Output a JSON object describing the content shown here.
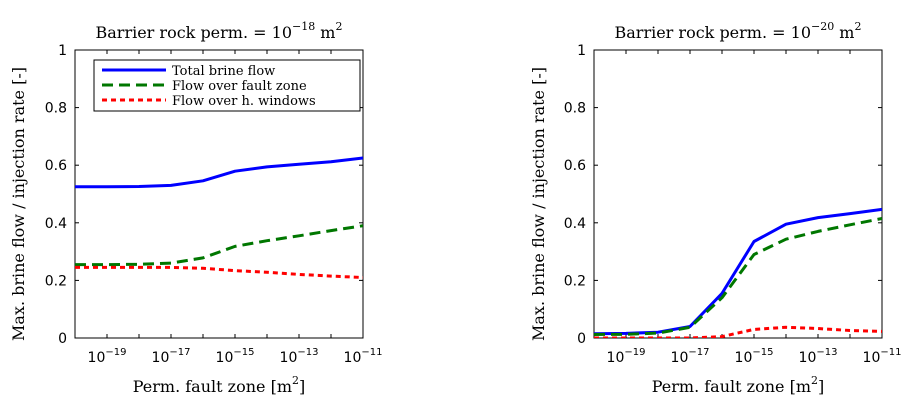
{
  "chart_data": [
    {
      "type": "line",
      "title_main": "Barrier rock perm. = 10",
      "title_exp": "−18",
      "title_unit": " m",
      "title_unit_exp": "2",
      "xlabel_main": "Perm. fault zone [m",
      "xlabel_exp": "2",
      "xlabel_end": "]",
      "ylabel": "Max. brine flow / injection rate [-]",
      "x_scale": "log",
      "xlim": [
        1e-20,
        1e-11
      ],
      "ylim": [
        0,
        1
      ],
      "x_ticks": [
        {
          "value": 1e-19,
          "base": "10",
          "exp": "−19"
        },
        {
          "value": 1e-17,
          "base": "10",
          "exp": "−17"
        },
        {
          "value": 1e-15,
          "base": "10",
          "exp": "−15"
        },
        {
          "value": 1e-13,
          "base": "10",
          "exp": "−13"
        },
        {
          "value": 1e-11,
          "base": "10",
          "exp": "−11"
        }
      ],
      "y_ticks": [
        {
          "value": 0,
          "label": "0"
        },
        {
          "value": 0.2,
          "label": "0.2"
        },
        {
          "value": 0.4,
          "label": "0.4"
        },
        {
          "value": 0.6,
          "label": "0.6"
        },
        {
          "value": 0.8,
          "label": "0.8"
        },
        {
          "value": 1,
          "label": "1"
        }
      ],
      "legend_position": "top",
      "grid": false,
      "x": [
        1e-20,
        1e-19,
        1e-18,
        1e-17,
        1e-16,
        1e-15,
        1e-14,
        1e-13,
        1e-12,
        1e-11
      ],
      "series": [
        {
          "name": "Total brine flow",
          "color": "#0000ff",
          "style": "solid",
          "values": [
            0.525,
            0.525,
            0.526,
            0.53,
            0.546,
            0.579,
            0.594,
            0.603,
            0.612,
            0.625
          ]
        },
        {
          "name": "Flow over fault zone",
          "color": "#007700",
          "style": "dashed",
          "values": [
            0.255,
            0.255,
            0.256,
            0.26,
            0.278,
            0.318,
            0.338,
            0.355,
            0.373,
            0.39
          ]
        },
        {
          "name": "Flow over h. windows",
          "color": "#ff0000",
          "style": "dotted",
          "values": [
            0.245,
            0.245,
            0.245,
            0.245,
            0.242,
            0.234,
            0.228,
            0.221,
            0.215,
            0.21
          ]
        }
      ]
    },
    {
      "type": "line",
      "title_main": "Barrier rock perm. = 10",
      "title_exp": "−20",
      "title_unit": " m",
      "title_unit_exp": "2",
      "xlabel_main": "Perm. fault zone [m",
      "xlabel_exp": "2",
      "xlabel_end": "]",
      "ylabel": "Max. brine flow / injection rate [-]",
      "x_scale": "log",
      "xlim": [
        1e-20,
        1e-11
      ],
      "ylim": [
        0,
        1
      ],
      "x_ticks": [
        {
          "value": 1e-19,
          "base": "10",
          "exp": "−19"
        },
        {
          "value": 1e-17,
          "base": "10",
          "exp": "−17"
        },
        {
          "value": 1e-15,
          "base": "10",
          "exp": "−15"
        },
        {
          "value": 1e-13,
          "base": "10",
          "exp": "−13"
        },
        {
          "value": 1e-11,
          "base": "10",
          "exp": "−11"
        }
      ],
      "y_ticks": [
        {
          "value": 0,
          "label": "0"
        },
        {
          "value": 0.2,
          "label": "0.2"
        },
        {
          "value": 0.4,
          "label": "0.4"
        },
        {
          "value": 0.6,
          "label": "0.6"
        },
        {
          "value": 0.8,
          "label": "0.8"
        },
        {
          "value": 1,
          "label": "1"
        }
      ],
      "grid": false,
      "x": [
        1e-20,
        1e-19,
        1e-18,
        1e-17,
        1e-16,
        1e-15,
        1e-14,
        1e-13,
        1e-12,
        1e-11
      ],
      "series": [
        {
          "name": "Total brine flow",
          "color": "#0000ff",
          "style": "solid",
          "values": [
            0.015,
            0.016,
            0.02,
            0.04,
            0.155,
            0.335,
            0.395,
            0.418,
            0.432,
            0.447
          ]
        },
        {
          "name": "Flow over fault zone",
          "color": "#007700",
          "style": "dashed",
          "values": [
            0.012,
            0.013,
            0.017,
            0.037,
            0.14,
            0.29,
            0.343,
            0.37,
            0.393,
            0.415
          ]
        },
        {
          "name": "Flow over h. windows",
          "color": "#ff0000",
          "style": "dotted",
          "values": [
            0.0,
            0.0,
            0.0,
            0.0,
            0.005,
            0.03,
            0.037,
            0.033,
            0.026,
            0.023
          ]
        }
      ]
    }
  ]
}
